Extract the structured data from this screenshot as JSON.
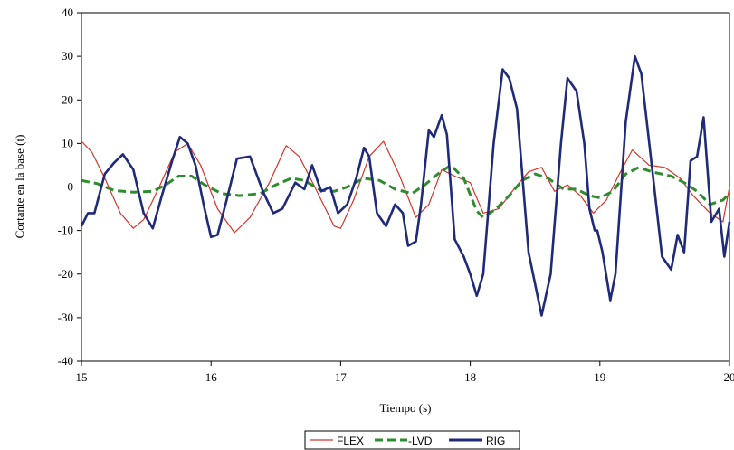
{
  "chart_data": {
    "type": "line",
    "xlabel": "Tiempo (s)",
    "ylabel": "Cortante en la base (t)",
    "xlim": [
      15,
      20
    ],
    "ylim": [
      -40,
      40
    ],
    "x_ticks": [
      "15",
      "16",
      "17",
      "18",
      "19",
      "20"
    ],
    "y_ticks": [
      "40",
      "30",
      "20",
      "10",
      "0",
      "-10",
      "-20",
      "-30",
      "-40"
    ],
    "grid": false,
    "legend": "bottom",
    "series": [
      {
        "name": "FLEX",
        "color": "#d4352a",
        "style": "solid-thin",
        "points": [
          [
            15.0,
            10.5
          ],
          [
            15.08,
            8.0
          ],
          [
            15.18,
            2.0
          ],
          [
            15.3,
            -6.0
          ],
          [
            15.4,
            -9.5
          ],
          [
            15.48,
            -7.5
          ],
          [
            15.6,
            0.0
          ],
          [
            15.72,
            8.0
          ],
          [
            15.82,
            10.0
          ],
          [
            15.92,
            5.0
          ],
          [
            16.05,
            -5.0
          ],
          [
            16.18,
            -10.5
          ],
          [
            16.3,
            -7.0
          ],
          [
            16.45,
            1.0
          ],
          [
            16.58,
            9.5
          ],
          [
            16.68,
            7.0
          ],
          [
            16.8,
            0.0
          ],
          [
            16.95,
            -9.0
          ],
          [
            17.0,
            -9.5
          ],
          [
            17.1,
            -3.0
          ],
          [
            17.22,
            7.0
          ],
          [
            17.33,
            10.5
          ],
          [
            17.45,
            3.0
          ],
          [
            17.58,
            -7.0
          ],
          [
            17.68,
            -4.0
          ],
          [
            17.78,
            4.0
          ],
          [
            17.88,
            2.5
          ],
          [
            18.0,
            1.0
          ],
          [
            18.1,
            -6.0
          ],
          [
            18.22,
            -5.0
          ],
          [
            18.35,
            0.0
          ],
          [
            18.45,
            3.5
          ],
          [
            18.55,
            4.5
          ],
          [
            18.65,
            -1.0
          ],
          [
            18.75,
            0.5
          ],
          [
            18.85,
            -2.0
          ],
          [
            18.95,
            -6.0
          ],
          [
            19.05,
            -3.0
          ],
          [
            19.15,
            3.0
          ],
          [
            19.25,
            8.5
          ],
          [
            19.38,
            5.0
          ],
          [
            19.5,
            4.5
          ],
          [
            19.62,
            2.0
          ],
          [
            19.72,
            -2.0
          ],
          [
            19.85,
            -6.0
          ],
          [
            19.95,
            -8.0
          ],
          [
            20.0,
            0.0
          ]
        ]
      },
      {
        "name": "LVD",
        "color": "#2e8b2e",
        "style": "dashed-thick",
        "points": [
          [
            15.0,
            1.5
          ],
          [
            15.12,
            0.8
          ],
          [
            15.25,
            -0.8
          ],
          [
            15.4,
            -1.2
          ],
          [
            15.55,
            -1.0
          ],
          [
            15.65,
            0.5
          ],
          [
            15.75,
            2.5
          ],
          [
            15.85,
            2.5
          ],
          [
            15.95,
            0.5
          ],
          [
            16.08,
            -1.5
          ],
          [
            16.22,
            -2.0
          ],
          [
            16.38,
            -1.5
          ],
          [
            16.5,
            0.5
          ],
          [
            16.62,
            2.0
          ],
          [
            16.72,
            1.5
          ],
          [
            16.85,
            -0.8
          ],
          [
            16.95,
            -1.0
          ],
          [
            17.05,
            0.0
          ],
          [
            17.18,
            2.0
          ],
          [
            17.3,
            1.5
          ],
          [
            17.42,
            -0.5
          ],
          [
            17.55,
            -1.5
          ],
          [
            17.65,
            0.5
          ],
          [
            17.75,
            3.0
          ],
          [
            17.85,
            5.0
          ],
          [
            17.95,
            2.0
          ],
          [
            18.05,
            -5.5
          ],
          [
            18.1,
            -7.0
          ],
          [
            18.2,
            -5.0
          ],
          [
            18.3,
            -2.0
          ],
          [
            18.4,
            1.5
          ],
          [
            18.5,
            3.0
          ],
          [
            18.6,
            2.0
          ],
          [
            18.72,
            -0.5
          ],
          [
            18.82,
            -0.5
          ],
          [
            18.92,
            -2.0
          ],
          [
            19.0,
            -2.5
          ],
          [
            19.1,
            -1.0
          ],
          [
            19.2,
            3.0
          ],
          [
            19.3,
            4.5
          ],
          [
            19.4,
            3.5
          ],
          [
            19.55,
            2.5
          ],
          [
            19.65,
            1.0
          ],
          [
            19.75,
            -1.0
          ],
          [
            19.85,
            -4.0
          ],
          [
            19.95,
            -3.0
          ],
          [
            20.0,
            -1.5
          ]
        ]
      },
      {
        "name": "RIG",
        "color": "#1f2a7a",
        "style": "solid-thick",
        "points": [
          [
            15.0,
            -9.0
          ],
          [
            15.05,
            -6.0
          ],
          [
            15.1,
            -6.0
          ],
          [
            15.18,
            3.0
          ],
          [
            15.25,
            5.5
          ],
          [
            15.32,
            7.5
          ],
          [
            15.4,
            4.0
          ],
          [
            15.48,
            -6.0
          ],
          [
            15.55,
            -9.5
          ],
          [
            15.62,
            -2.0
          ],
          [
            15.7,
            6.0
          ],
          [
            15.76,
            11.5
          ],
          [
            15.82,
            10.0
          ],
          [
            15.88,
            5.0
          ],
          [
            15.95,
            -5.0
          ],
          [
            16.0,
            -11.5
          ],
          [
            16.05,
            -11.0
          ],
          [
            16.12,
            -3.0
          ],
          [
            16.2,
            6.5
          ],
          [
            16.3,
            7.0
          ],
          [
            16.4,
            -1.0
          ],
          [
            16.48,
            -6.0
          ],
          [
            16.55,
            -5.0
          ],
          [
            16.65,
            1.0
          ],
          [
            16.72,
            -0.5
          ],
          [
            16.78,
            5.0
          ],
          [
            16.85,
            -1.0
          ],
          [
            16.92,
            0.0
          ],
          [
            16.98,
            -6.0
          ],
          [
            17.05,
            -4.0
          ],
          [
            17.12,
            2.0
          ],
          [
            17.18,
            9.0
          ],
          [
            17.22,
            7.0
          ],
          [
            17.28,
            -6.0
          ],
          [
            17.35,
            -9.0
          ],
          [
            17.42,
            -4.0
          ],
          [
            17.48,
            -6.0
          ],
          [
            17.52,
            -13.5
          ],
          [
            17.58,
            -12.5
          ],
          [
            17.62,
            -4.0
          ],
          [
            17.68,
            13.0
          ],
          [
            17.72,
            11.5
          ],
          [
            17.78,
            16.5
          ],
          [
            17.82,
            12.0
          ],
          [
            17.88,
            -12.0
          ],
          [
            17.95,
            -16.0
          ],
          [
            18.0,
            -20.0
          ],
          [
            18.05,
            -25.0
          ],
          [
            18.1,
            -20.0
          ],
          [
            18.18,
            10.0
          ],
          [
            18.25,
            27.0
          ],
          [
            18.3,
            25.0
          ],
          [
            18.36,
            18.0
          ],
          [
            18.45,
            -15.0
          ],
          [
            18.55,
            -29.5
          ],
          [
            18.62,
            -20.0
          ],
          [
            18.7,
            10.0
          ],
          [
            18.75,
            25.0
          ],
          [
            18.82,
            22.0
          ],
          [
            18.88,
            10.0
          ],
          [
            18.92,
            -5.0
          ],
          [
            18.96,
            -10.0
          ],
          [
            18.98,
            -10.0
          ],
          [
            19.02,
            -15.0
          ],
          [
            19.08,
            -26.0
          ],
          [
            19.12,
            -20.0
          ],
          [
            19.2,
            15.0
          ],
          [
            19.27,
            30.0
          ],
          [
            19.32,
            26.0
          ],
          [
            19.4,
            5.0
          ],
          [
            19.48,
            -16.0
          ],
          [
            19.55,
            -19.0
          ],
          [
            19.6,
            -11.0
          ],
          [
            19.65,
            -15.0
          ],
          [
            19.7,
            6.0
          ],
          [
            19.75,
            7.0
          ],
          [
            19.8,
            16.0
          ],
          [
            19.86,
            -8.0
          ],
          [
            19.92,
            -5.0
          ],
          [
            19.96,
            -16.0
          ],
          [
            20.0,
            -8.0
          ]
        ]
      }
    ]
  },
  "legend": {
    "flex_label": "FLEX",
    "lvd_label": "-LVD",
    "rig_label": "RIG"
  }
}
